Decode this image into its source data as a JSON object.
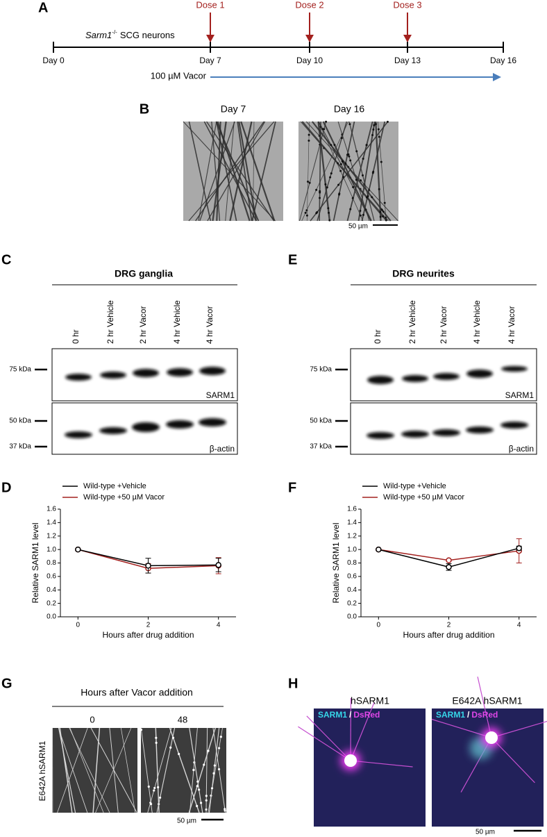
{
  "panel_a": {
    "label": "A",
    "gene": "Sarm1",
    "genotype": "-/-",
    "cells": "SCG neurons",
    "days": [
      "Day 0",
      "Day 7",
      "Day 10",
      "Day 13",
      "Day 16"
    ],
    "doses": [
      "Dose 1",
      "Dose 2",
      "Dose 3"
    ],
    "treatment": "100 µM Vacor"
  },
  "panel_b": {
    "label": "B",
    "images": [
      "Day 7",
      "Day 16"
    ],
    "scale_bar": "50 µm"
  },
  "panel_c": {
    "label": "C",
    "title": "DRG ganglia",
    "lanes": [
      "0 hr",
      "2 hr Vehicle",
      "2 hr Vacor",
      "4 hr Vehicle",
      "4 hr Vacor"
    ],
    "markers": [
      "75 kDa",
      "50 kDa",
      "37 kDa"
    ],
    "blots": [
      "SARM1",
      "β-actin"
    ]
  },
  "panel_e": {
    "label": "E",
    "title": "DRG neurites",
    "lanes": [
      "0 hr",
      "2 hr Vehicle",
      "2 hr Vacor",
      "4 hr Vehicle",
      "4 hr Vacor"
    ],
    "markers": [
      "75 kDa",
      "50 kDa",
      "37 kDa"
    ],
    "blots": [
      "SARM1",
      "β-actin"
    ]
  },
  "chart_data": [
    {
      "type": "line",
      "label": "D",
      "x": [
        0,
        2,
        4
      ],
      "xlim": [
        -0.5,
        4.5
      ],
      "xticks": [
        0,
        2,
        4
      ],
      "ylim": [
        0,
        1.6
      ],
      "yticks": [
        {
          "value": 0,
          "label": "0.0"
        },
        0.2,
        0.4,
        0.6,
        0.8,
        {
          "value": 1,
          "label": "1.0"
        },
        1.2,
        1.4,
        1.6
      ],
      "x_label": "Hours after drug addition",
      "y_label": "Relative SARM1 level",
      "series": [
        {
          "name": "Wild-type +Vehicle",
          "color": "#000000",
          "values": [
            1.0,
            0.76,
            0.77
          ],
          "errors": [
            0,
            0.11,
            0.1
          ]
        },
        {
          "name": "Wild-type +50 µM Vacor",
          "color": "#a3201e",
          "values": [
            1.0,
            0.72,
            0.76
          ],
          "errors": [
            0,
            0.07,
            0.12
          ]
        }
      ]
    },
    {
      "type": "line",
      "label": "F",
      "x": [
        0,
        2,
        4
      ],
      "xlim": [
        -0.5,
        4.5
      ],
      "xticks": [
        0,
        2,
        4
      ],
      "ylim": [
        0,
        1.6
      ],
      "yticks": [
        {
          "value": 0,
          "label": "0.0"
        },
        0.2,
        0.4,
        0.6,
        0.8,
        {
          "value": 1,
          "label": "1.0"
        },
        1.2,
        1.4,
        1.6
      ],
      "x_label": "Hours after drug addition",
      "y_label": "Relative SARM1 level",
      "series": [
        {
          "name": "Wild-type +Vehicle",
          "color": "#000000",
          "values": [
            1.0,
            0.74,
            1.02
          ],
          "errors": [
            0,
            0.05,
            0.03
          ]
        },
        {
          "name": "Wild-type +50 µM Vacor",
          "color": "#a3201e",
          "values": [
            1.0,
            0.84,
            0.98
          ],
          "errors": [
            0,
            0.01,
            0.18
          ]
        }
      ]
    }
  ],
  "panel_g": {
    "label": "G",
    "title": "Hours after Vacor addition",
    "timepoints": [
      "0",
      "48"
    ],
    "row_label": "E642A hSARM1",
    "scale_bar": "50 µm"
  },
  "panel_h": {
    "label": "H",
    "images": [
      "hSARM1",
      "E642A hSARM1"
    ],
    "stain_1": "SARM1",
    "separator": "/",
    "stain_2": "DsRed",
    "scale_bar": "50 µm"
  }
}
